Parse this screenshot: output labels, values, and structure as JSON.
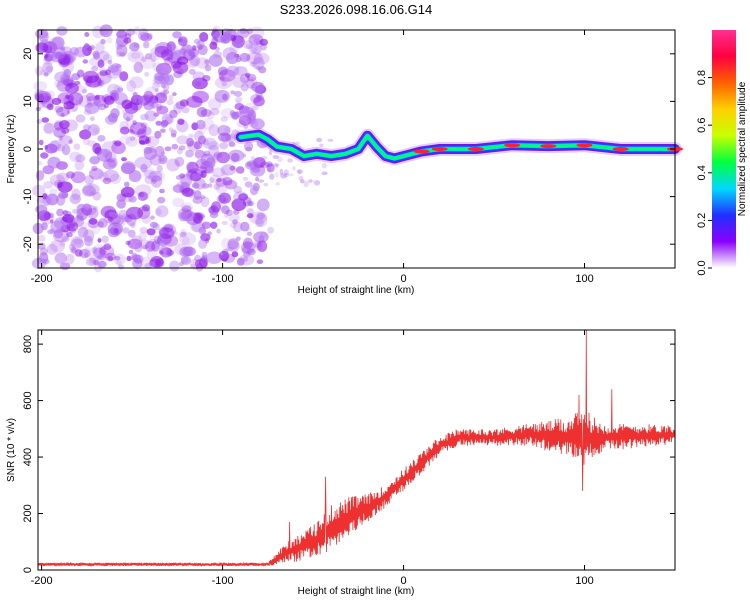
{
  "title": "S233.2026.098.16.06.G14",
  "chart_data": [
    {
      "type": "heatmap",
      "name": "spectrogram",
      "xlabel": "Height of straight line (km)",
      "ylabel": "Frequency (Hz)",
      "xlim": [
        -202,
        150
      ],
      "ylim": [
        -25,
        25
      ],
      "xticks": [
        -200,
        -100,
        0,
        100
      ],
      "yticks": [
        -20,
        -10,
        0,
        10,
        20
      ],
      "noise_region": {
        "x_from": -202,
        "x_to": -77
      },
      "ridge": [
        {
          "x": -90,
          "y": 2.5
        },
        {
          "x": -80,
          "y": 3.0
        },
        {
          "x": -75,
          "y": 2.0
        },
        {
          "x": -70,
          "y": 0.5
        },
        {
          "x": -62,
          "y": 0.0
        },
        {
          "x": -55,
          "y": -1.5
        },
        {
          "x": -48,
          "y": -1.0
        },
        {
          "x": -40,
          "y": -1.5
        },
        {
          "x": -32,
          "y": -1.0
        },
        {
          "x": -25,
          "y": 0.0
        },
        {
          "x": -20,
          "y": 2.8
        },
        {
          "x": -15,
          "y": 0.5
        },
        {
          "x": -10,
          "y": -1.5
        },
        {
          "x": -5,
          "y": -2.0
        },
        {
          "x": 0,
          "y": -1.5
        },
        {
          "x": 10,
          "y": -0.5
        },
        {
          "x": 20,
          "y": 0.0
        },
        {
          "x": 40,
          "y": 0.0
        },
        {
          "x": 60,
          "y": 0.8
        },
        {
          "x": 80,
          "y": 0.6
        },
        {
          "x": 100,
          "y": 0.8
        },
        {
          "x": 120,
          "y": 0.0
        },
        {
          "x": 150,
          "y": 0.0
        }
      ],
      "colorbar": {
        "label": "Normalized spectral amplitude",
        "ticks": [
          "0.0",
          "0.2",
          "0.4",
          "0.6",
          "0.8"
        ],
        "range": [
          0,
          1
        ],
        "colors": [
          "#ffffff",
          "#8b00ff",
          "#2030ff",
          "#00d8ff",
          "#00ff40",
          "#c8ff00",
          "#ffd000",
          "#ff6000",
          "#ff0040",
          "#ff3090"
        ]
      }
    },
    {
      "type": "line",
      "name": "snr",
      "xlabel": "Height of straight line (km)",
      "ylabel": "SNR (10 * v/v)",
      "xlim": [
        -202,
        150
      ],
      "ylim": [
        0,
        850
      ],
      "xticks": [
        -200,
        -100,
        0,
        100
      ],
      "yticks": [
        0,
        200,
        400,
        600,
        800
      ],
      "color": "#ee3030",
      "envelope": [
        {
          "x": -202,
          "mean": 20,
          "spread": 6
        },
        {
          "x": -75,
          "mean": 20,
          "spread": 6
        },
        {
          "x": -65,
          "mean": 60,
          "spread": 40
        },
        {
          "x": -50,
          "mean": 100,
          "spread": 60
        },
        {
          "x": -40,
          "mean": 150,
          "spread": 80
        },
        {
          "x": -30,
          "mean": 190,
          "spread": 70
        },
        {
          "x": -20,
          "mean": 220,
          "spread": 50
        },
        {
          "x": -10,
          "mean": 260,
          "spread": 40
        },
        {
          "x": 0,
          "mean": 320,
          "spread": 40
        },
        {
          "x": 10,
          "mean": 380,
          "spread": 40
        },
        {
          "x": 20,
          "mean": 440,
          "spread": 35
        },
        {
          "x": 30,
          "mean": 470,
          "spread": 30
        },
        {
          "x": 50,
          "mean": 470,
          "spread": 30
        },
        {
          "x": 70,
          "mean": 480,
          "spread": 40
        },
        {
          "x": 90,
          "mean": 470,
          "spread": 70
        },
        {
          "x": 100,
          "mean": 470,
          "spread": 100
        },
        {
          "x": 110,
          "mean": 470,
          "spread": 50
        },
        {
          "x": 150,
          "mean": 480,
          "spread": 35
        }
      ],
      "spikes": [
        {
          "x": 101,
          "y": 850
        },
        {
          "x": 99,
          "y": 280
        },
        {
          "x": 115,
          "y": 640
        },
        {
          "x": 97,
          "y": 620
        },
        {
          "x": -43,
          "y": 330
        },
        {
          "x": -63,
          "y": 170
        }
      ]
    }
  ]
}
